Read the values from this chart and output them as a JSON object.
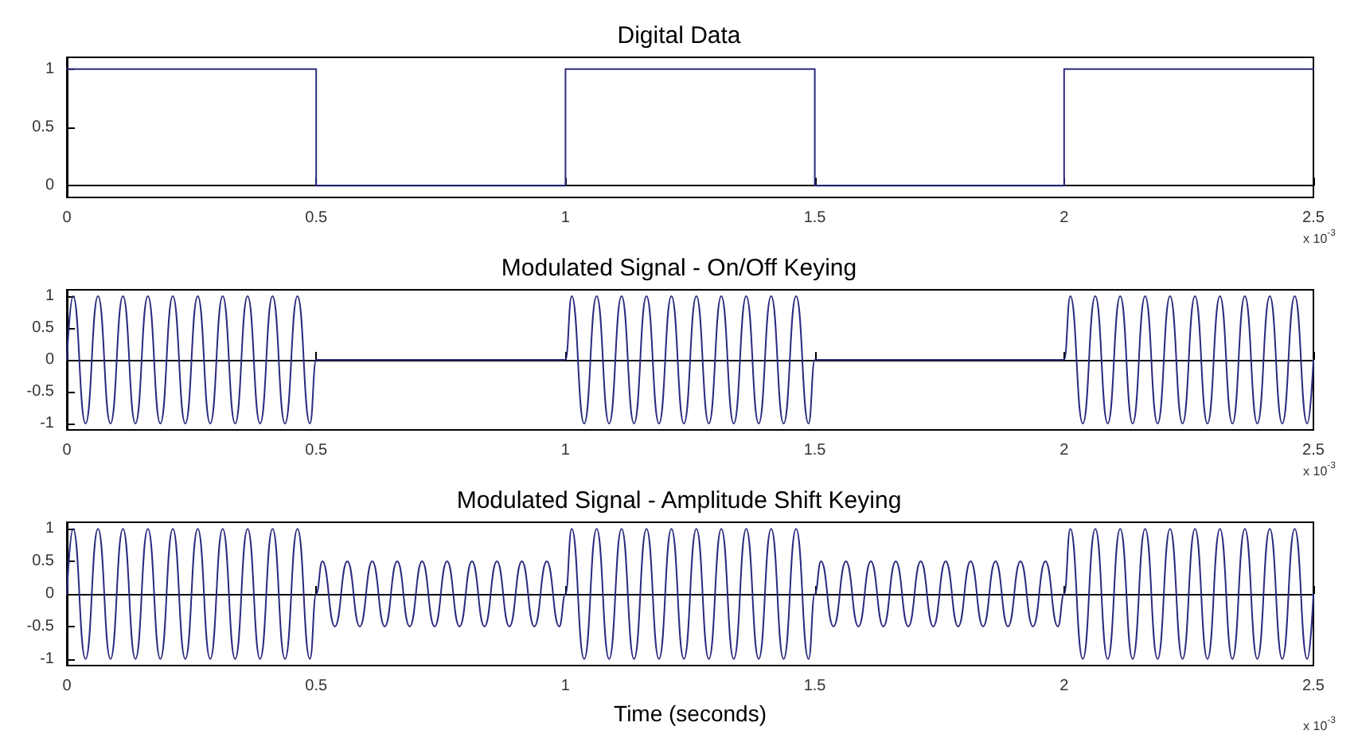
{
  "chart_data": [
    {
      "type": "step",
      "title": "Digital Data",
      "x": [
        0,
        0.5,
        1,
        1.5,
        2,
        2.5
      ],
      "series": [
        {
          "color": "#2b2b80",
          "values": [
            1,
            0,
            1,
            0,
            1,
            1
          ]
        }
      ],
      "xlim": [
        0,
        2.5
      ],
      "xticks": [
        0,
        0.5,
        1,
        1.5,
        2,
        2.5
      ],
      "ylim": [
        -0.1,
        1.1
      ],
      "yticks": [
        0,
        0.5,
        1
      ],
      "annotations": [
        "x 10$^{-3}$"
      ]
    },
    {
      "type": "line",
      "title": "Modulated Signal - On/Off Keying",
      "x": [
        0,
        0.0125,
        0.0375,
        0.0625,
        0.0875,
        0.1125,
        0.1375,
        0.1625,
        0.1875,
        0.2125,
        0.2375,
        0.2625,
        0.2875,
        0.3125,
        0.3375,
        0.3625,
        0.3875,
        0.4125,
        0.4375,
        0.4625,
        0.4875,
        0.5,
        1,
        1.0125,
        1.0375,
        1.0625,
        1.0875,
        1.1125,
        1.1375,
        1.1625,
        1.1875,
        1.2125,
        1.2375,
        1.2625,
        1.2875,
        1.3125,
        1.3375,
        1.3625,
        1.3875,
        1.4125,
        1.4375,
        1.4625,
        1.4875,
        1.5,
        2,
        2.0125,
        2.0375,
        2.0625,
        2.0875,
        2.1125,
        2.1375,
        2.1625,
        2.1875,
        2.2125,
        2.2375,
        2.2625,
        2.2875,
        2.3125,
        2.3375,
        2.3625,
        2.3875,
        2.4125,
        2.4375,
        2.4625,
        2.4875,
        2.5
      ],
      "series": [
        {
          "color": "#2b2b80",
          "values": [
            0,
            1,
            -1,
            1,
            -1,
            1,
            -1,
            1,
            -1,
            1,
            -1,
            1,
            -1,
            1,
            -1,
            1,
            -1,
            1,
            -1,
            1,
            -1,
            0,
            0,
            1,
            -1,
            1,
            -1,
            1,
            -1,
            1,
            -1,
            1,
            -1,
            1,
            -1,
            1,
            -1,
            1,
            -1,
            1,
            -1,
            1,
            -1,
            0,
            0,
            1,
            -1,
            1,
            -1,
            1,
            -1,
            1,
            -1,
            1,
            -1,
            1,
            -1,
            1,
            -1,
            1,
            -1,
            1,
            -1,
            1,
            -1,
            0
          ]
        }
      ],
      "xlim": [
        0,
        2.5
      ],
      "xticks": [
        0,
        0.5,
        1,
        1.5,
        2,
        2.5
      ],
      "ylim": [
        -1.1,
        1.1
      ],
      "yticks": [
        -1,
        -0.5,
        0,
        0.5,
        1
      ],
      "annotations": [
        "x 10$^{-3}$"
      ]
    },
    {
      "type": "line",
      "title": "Modulated Signal - Amplitude Shift Keying",
      "xlabel": "Time (seconds)",
      "x": [
        0,
        0.0125,
        0.0375,
        0.0625,
        0.0875,
        0.1125,
        0.1375,
        0.1625,
        0.1875,
        0.2125,
        0.2375,
        0.2625,
        0.2875,
        0.3125,
        0.3375,
        0.3625,
        0.3875,
        0.4125,
        0.4375,
        0.4625,
        0.4875,
        0.5,
        0.5125,
        0.5375,
        0.5625,
        0.5875,
        0.6125,
        0.6375,
        0.6625,
        0.6875,
        0.7125,
        0.7375,
        0.7625,
        0.7875,
        0.8125,
        0.8375,
        0.8625,
        0.8875,
        0.9125,
        0.9375,
        0.9625,
        0.9875,
        1,
        1.0125,
        1.0375,
        1.0625,
        1.0875,
        1.1125,
        1.1375,
        1.1625,
        1.1875,
        1.2125,
        1.2375,
        1.2625,
        1.2875,
        1.3125,
        1.3375,
        1.3625,
        1.3875,
        1.4125,
        1.4375,
        1.4625,
        1.4875,
        1.5,
        1.5125,
        1.5375,
        1.5625,
        1.5875,
        1.6125,
        1.6375,
        1.6625,
        1.6875,
        1.7125,
        1.7375,
        1.7625,
        1.7875,
        1.8125,
        1.8375,
        1.8625,
        1.8875,
        1.9125,
        1.9375,
        1.9625,
        1.9875,
        2,
        2.0125,
        2.0375,
        2.0625,
        2.0875,
        2.1125,
        2.1375,
        2.1625,
        2.1875,
        2.2125,
        2.2375,
        2.2625,
        2.2875,
        2.3125,
        2.3375,
        2.3625,
        2.3875,
        2.4125,
        2.4375,
        2.4625,
        2.4875,
        2.5
      ],
      "series": [
        {
          "color": "#2b2b80",
          "values": [
            0,
            1,
            -1,
            1,
            -1,
            1,
            -1,
            1,
            -1,
            1,
            -1,
            1,
            -1,
            1,
            -1,
            1,
            -1,
            1,
            -1,
            1,
            -1,
            0,
            0.5,
            -0.5,
            0.5,
            -0.5,
            0.5,
            -0.5,
            0.5,
            -0.5,
            0.5,
            -0.5,
            0.5,
            -0.5,
            0.5,
            -0.5,
            0.5,
            -0.5,
            0.5,
            -0.5,
            0.5,
            -0.5,
            0,
            1,
            -1,
            1,
            -1,
            1,
            -1,
            1,
            -1,
            1,
            -1,
            1,
            -1,
            1,
            -1,
            1,
            -1,
            1,
            -1,
            1,
            -1,
            0,
            0.5,
            -0.5,
            0.5,
            -0.5,
            0.5,
            -0.5,
            0.5,
            -0.5,
            0.5,
            -0.5,
            0.5,
            -0.5,
            0.5,
            -0.5,
            0.5,
            -0.5,
            0.5,
            -0.5,
            0.5,
            -0.5,
            0,
            1,
            -1,
            1,
            -1,
            1,
            -1,
            1,
            -1,
            1,
            -1,
            1,
            -1,
            1,
            -1,
            1,
            -1,
            1,
            -1,
            1,
            -1,
            0
          ]
        }
      ],
      "xlim": [
        0,
        2.5
      ],
      "xticks": [
        0,
        0.5,
        1,
        1.5,
        2,
        2.5
      ],
      "ylim": [
        -1.1,
        1.1
      ],
      "yticks": [
        -1,
        -0.5,
        0,
        0.5,
        1
      ],
      "annotations": [
        "x 10$^{-3}$"
      ]
    }
  ]
}
